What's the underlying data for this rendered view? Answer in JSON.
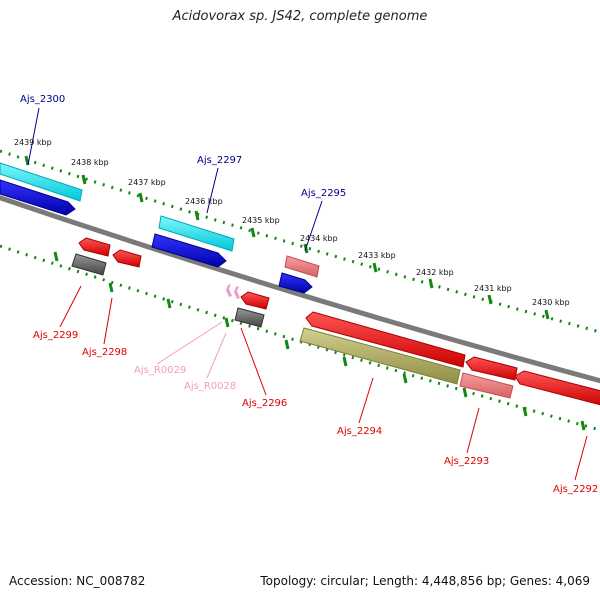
{
  "title": "Acidovorax sp. JS42, complete genome",
  "footer": {
    "accession": "Accession: NC_008782",
    "topology": "Topology: circular; Length: 4,448,856 bp; Genes: 4,069"
  },
  "kbp_labels": [
    "2439 kbp",
    "2438 kbp",
    "2437 kbp",
    "2436 kbp",
    "2435 kbp",
    "2434 kbp",
    "2433 kbp",
    "2432 kbp",
    "2431 kbp",
    "2430 kbp"
  ],
  "genes_top": [
    {
      "id": "Ajs_2300",
      "color": "#00008b"
    },
    {
      "id": "Ajs_2297",
      "color": "#00008b"
    },
    {
      "id": "Ajs_2295",
      "color": "#00008b"
    }
  ],
  "genes_bottom": [
    {
      "id": "Ajs_2299",
      "color": "#e00000"
    },
    {
      "id": "Ajs_2298",
      "color": "#e00000"
    },
    {
      "id": "Ajs_R0029",
      "color": "#f29ac6"
    },
    {
      "id": "Ajs_R0028",
      "color": "#f29ac6"
    },
    {
      "id": "Ajs_2296",
      "color": "#e00000"
    },
    {
      "id": "Ajs_2294",
      "color": "#e00000"
    },
    {
      "id": "Ajs_2293",
      "color": "#e00000"
    },
    {
      "id": "Ajs_2292",
      "color": "#e00000"
    }
  ],
  "colors": {
    "cds_red": "#ff0000",
    "cds_blue": "#0000ee",
    "rrna_cyan": "#00e5ee",
    "pseudo_gray": "#707070",
    "pink": "#f08080",
    "olive": "#b5b36a",
    "tick_green": "#118811",
    "backbone": "#777777"
  }
}
